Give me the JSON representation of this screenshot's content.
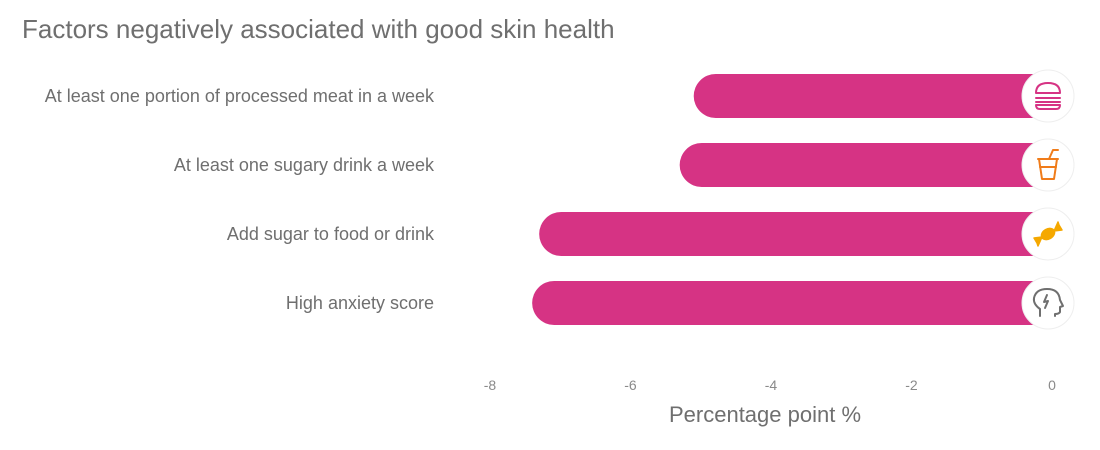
{
  "chart_data": {
    "type": "bar",
    "orientation": "horizontal",
    "title": "Factors negatively associated with good skin health",
    "xlabel": "Percentage point %",
    "ylabel": "",
    "categories": [
      "At least one portion of processed meat in a week",
      "At least one sugary drink a week",
      "Add sugar to food or drink",
      "High anxiety score"
    ],
    "values": [
      -5.1,
      -5.3,
      -7.3,
      -7.4
    ],
    "xlim": [
      -8,
      0
    ],
    "xticks": [
      "-8",
      "-6",
      "-4",
      "-2",
      "0"
    ],
    "grid": false,
    "legend": "none",
    "bar_color": "#d63384",
    "icons": [
      {
        "name": "burger-icon",
        "color": "#d63384"
      },
      {
        "name": "cup-icon",
        "color": "#f07c1a"
      },
      {
        "name": "candy-icon",
        "color": "#f5a800"
      },
      {
        "name": "head-icon",
        "color": "#6f6f6f"
      }
    ]
  }
}
